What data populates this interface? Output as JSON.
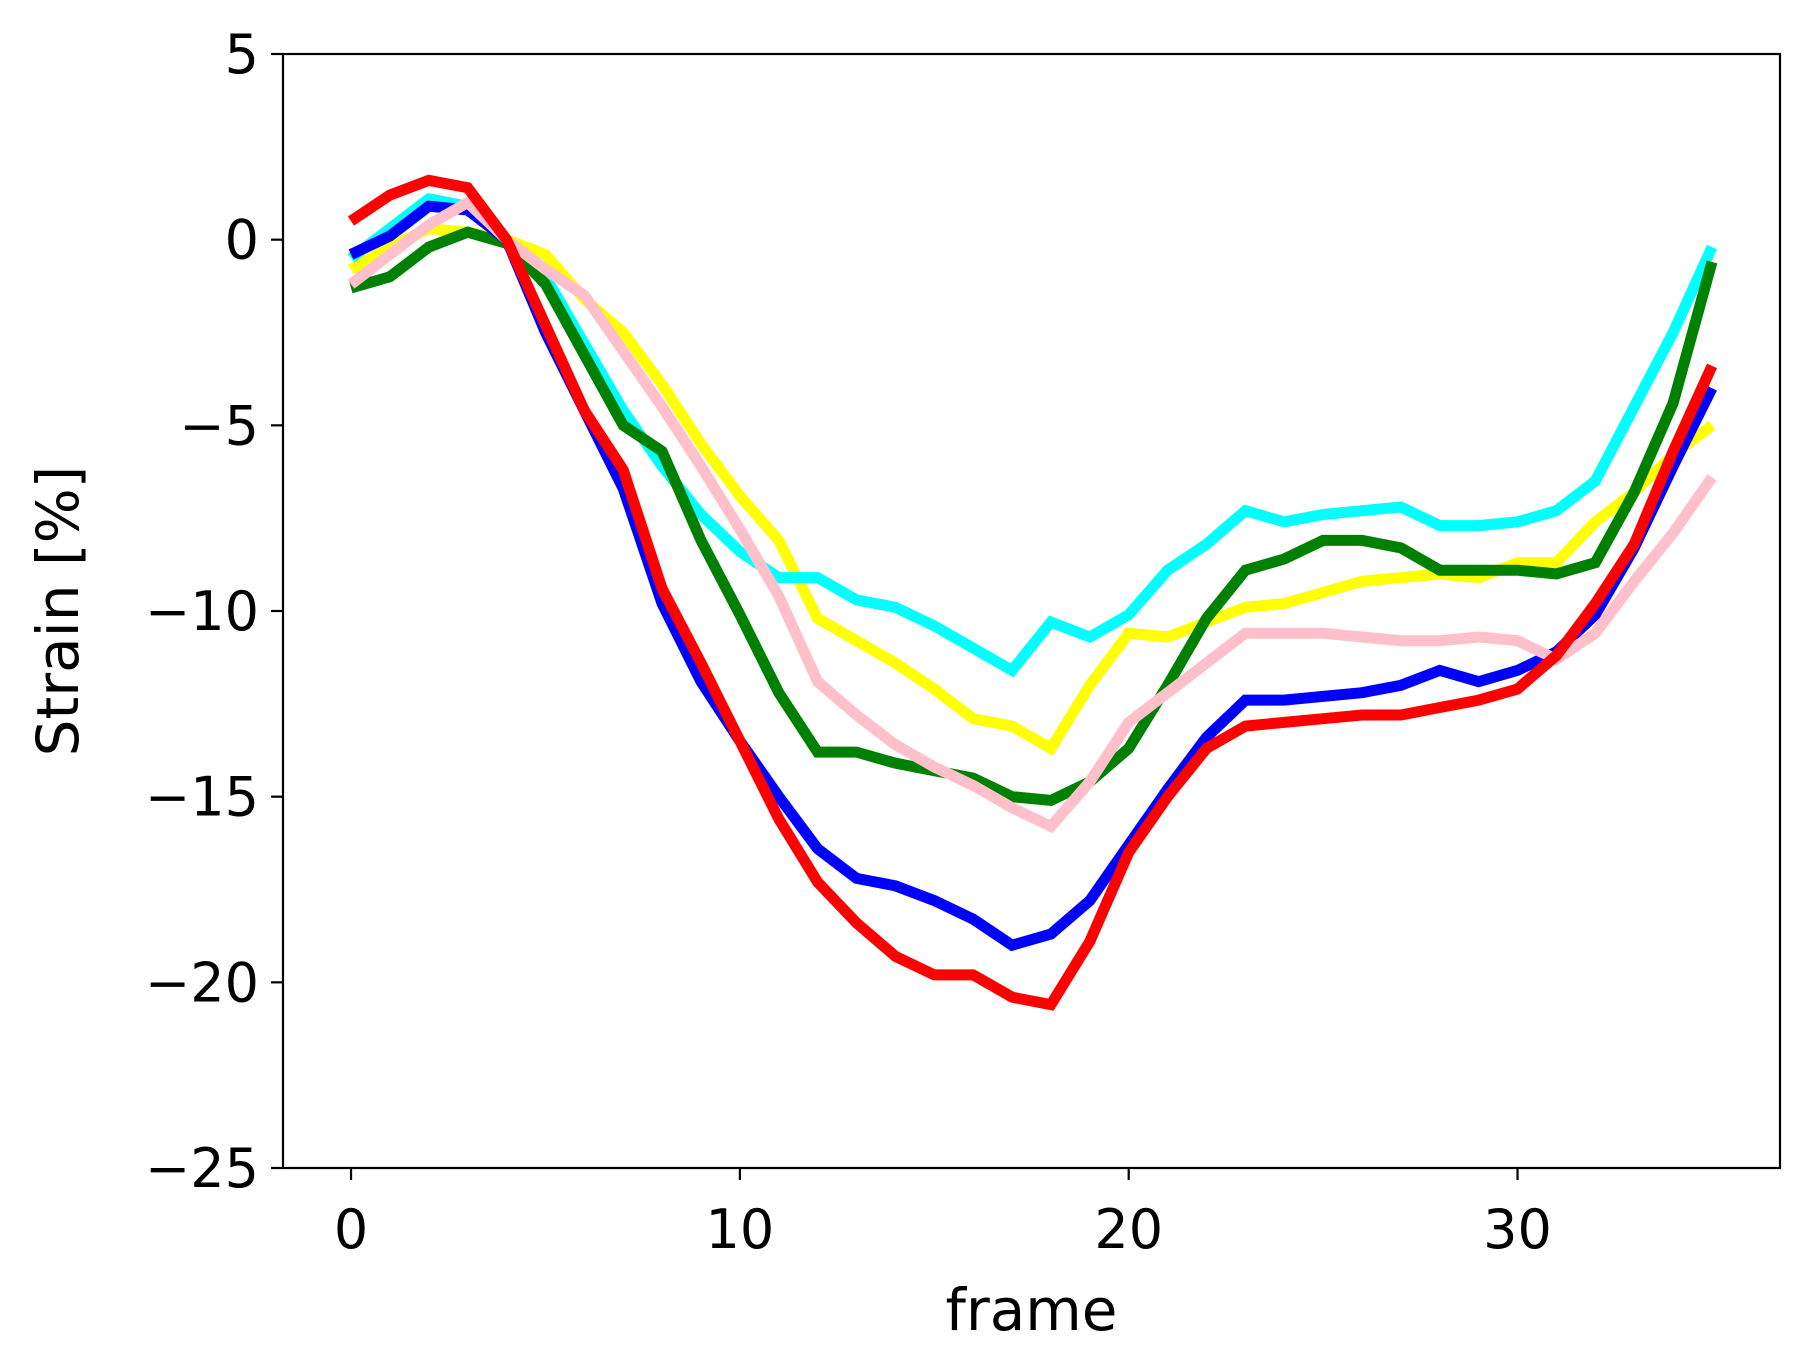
{
  "chart_data": {
    "type": "line",
    "title": "",
    "xlabel": "frame",
    "ylabel": "Strain [%]",
    "xlim": [
      -1.75,
      36.75
    ],
    "ylim": [
      -25,
      5
    ],
    "grid": false,
    "xticks": [
      0,
      10,
      20,
      30
    ],
    "xtick_labels": [
      "0",
      "10",
      "20",
      "30"
    ],
    "yticks": [
      5,
      0,
      -5,
      -10,
      -15,
      -20,
      -25
    ],
    "ytick_labels": [
      "5",
      "0",
      "−5",
      "−10",
      "−15",
      "−20",
      "−25"
    ],
    "x": [
      0,
      1,
      2,
      3,
      4,
      5,
      6,
      7,
      8,
      9,
      10,
      11,
      12,
      13,
      14,
      15,
      16,
      17,
      18,
      19,
      20,
      21,
      22,
      23,
      24,
      25,
      26,
      27,
      28,
      29,
      30,
      31,
      32,
      33,
      34,
      35
    ],
    "series": [
      {
        "color": "#ffff00",
        "values": [
          -0.8,
          -0.2,
          0.3,
          0.2,
          0.0,
          -0.4,
          -1.6,
          -2.5,
          -3.9,
          -5.5,
          -6.9,
          -8.1,
          -10.2,
          -10.8,
          -11.4,
          -12.1,
          -12.9,
          -13.1,
          -13.7,
          -12.0,
          -10.6,
          -10.7,
          -10.3,
          -9.9,
          -9.8,
          -9.5,
          -9.2,
          -9.1,
          -9.0,
          -9.1,
          -8.7,
          -8.7,
          -7.6,
          -6.8,
          -5.8,
          -5.0
        ]
      },
      {
        "color": "#00ffff",
        "values": [
          -0.5,
          0.3,
          1.1,
          0.9,
          0.0,
          -1.0,
          -2.8,
          -4.6,
          -6.1,
          -7.4,
          -8.4,
          -9.1,
          -9.1,
          -9.7,
          -9.9,
          -10.4,
          -11.0,
          -11.6,
          -10.3,
          -10.7,
          -10.1,
          -8.9,
          -8.2,
          -7.3,
          -7.6,
          -7.4,
          -7.3,
          -7.2,
          -7.7,
          -7.7,
          -7.6,
          -7.3,
          -6.5,
          -4.5,
          -2.5,
          -0.2
        ]
      },
      {
        "color": "#008000",
        "values": [
          -1.3,
          -1.0,
          -0.2,
          0.2,
          -0.1,
          -1.2,
          -3.1,
          -5.0,
          -5.7,
          -8.1,
          -10.1,
          -12.2,
          -13.8,
          -13.8,
          -14.1,
          -14.3,
          -14.5,
          -15.0,
          -15.1,
          -14.6,
          -13.7,
          -12.0,
          -10.2,
          -8.9,
          -8.6,
          -8.1,
          -8.1,
          -8.3,
          -8.9,
          -8.9,
          -8.9,
          -9.0,
          -8.7,
          -6.8,
          -4.4,
          -0.6
        ]
      },
      {
        "color": "#0000ff",
        "values": [
          -0.4,
          0.1,
          0.9,
          0.8,
          0.0,
          -2.5,
          -4.6,
          -6.7,
          -9.8,
          -11.9,
          -13.5,
          -15.0,
          -16.4,
          -17.2,
          -17.4,
          -17.8,
          -18.3,
          -19.0,
          -18.7,
          -17.8,
          -16.3,
          -14.8,
          -13.4,
          -12.4,
          -12.4,
          -12.3,
          -12.2,
          -12.0,
          -11.6,
          -11.9,
          -11.6,
          -11.1,
          -10.1,
          -8.3,
          -6.1,
          -4.0
        ]
      },
      {
        "color": "#ffc0cb",
        "values": [
          -1.2,
          -0.4,
          0.4,
          1.0,
          0.0,
          -0.8,
          -1.5,
          -3.0,
          -4.5,
          -6.1,
          -7.8,
          -9.6,
          -11.9,
          -12.8,
          -13.6,
          -14.2,
          -14.7,
          -15.3,
          -15.8,
          -14.6,
          -13.0,
          -12.2,
          -11.4,
          -10.6,
          -10.6,
          -10.6,
          -10.7,
          -10.8,
          -10.8,
          -10.7,
          -10.8,
          -11.3,
          -10.6,
          -9.2,
          -7.9,
          -6.4
        ]
      },
      {
        "color": "#ff0000",
        "values": [
          0.5,
          1.2,
          1.6,
          1.4,
          0.0,
          -2.3,
          -4.6,
          -6.2,
          -9.4,
          -11.4,
          -13.5,
          -15.6,
          -17.3,
          -18.4,
          -19.3,
          -19.8,
          -19.8,
          -20.4,
          -20.6,
          -18.9,
          -16.5,
          -15.0,
          -13.7,
          -13.1,
          -13.0,
          -12.9,
          -12.8,
          -12.8,
          -12.6,
          -12.4,
          -12.1,
          -11.2,
          -9.8,
          -8.2,
          -5.7,
          -3.4
        ]
      }
    ]
  }
}
